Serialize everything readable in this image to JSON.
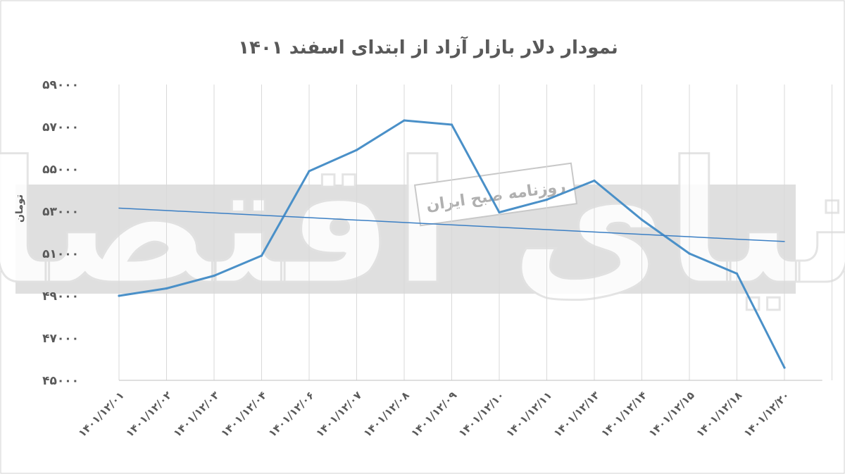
{
  "chart_data": {
    "type": "line",
    "title": "نمودار دلار بازار آزاد از ابتدای اسفند ۱۴۰۱",
    "ylabel": "تومان",
    "xlabel": "",
    "categories": [
      "۱۴۰۱/۱۲/۰۱",
      "۱۴۰۱/۱۲/۰۲",
      "۱۴۰۱/۱۲/۰۳",
      "۱۴۰۱/۱۲/۰۴",
      "۱۴۰۱/۱۲/۰۶",
      "۱۴۰۱/۱۲/۰۷",
      "۱۴۰۱/۱۲/۰۸",
      "۱۴۰۱/۱۲/۰۹",
      "۱۴۰۱/۱۲/۱۰",
      "۱۴۰۱/۱۲/۱۱",
      "۱۴۰۱/۱۲/۱۳",
      "۱۴۰۱/۱۲/۱۴",
      "۱۴۰۱/۱۲/۱۵",
      "۱۴۰۱/۱۲/۱۸",
      "۱۴۰۱/۱۲/۲۰"
    ],
    "series": [
      {
        "name": "",
        "values": [
          49000,
          49350,
          49950,
          50900,
          54900,
          55900,
          57300,
          57100,
          52950,
          53550,
          54450,
          52600,
          51000,
          50050,
          45600
        ]
      },
      {
        "name": "",
        "trendline": true,
        "values": [
          53150,
          53037,
          52924,
          52811,
          52698,
          52585,
          52472,
          52359,
          52246,
          52133,
          52020,
          51907,
          51794,
          51681,
          51570
        ]
      }
    ],
    "yticks": [
      "۴۵۰۰۰",
      "۴۷۰۰۰",
      "۴۹۰۰۰",
      "۵۱۰۰۰",
      "۵۳۰۰۰",
      "۵۵۰۰۰",
      "۵۷۰۰۰",
      "۵۹۰۰۰"
    ],
    "ylim": [
      45000,
      59000
    ],
    "grid": "vertical",
    "legend": "none",
    "colors": {
      "line": "#4a90c8",
      "trend": "#3b7fc4",
      "grid": "#d9d9d9",
      "text": "#595959"
    }
  },
  "watermark": {
    "logo_text": "دنیای اقتصاد",
    "box_text": "روزنامه صبح ایران"
  }
}
